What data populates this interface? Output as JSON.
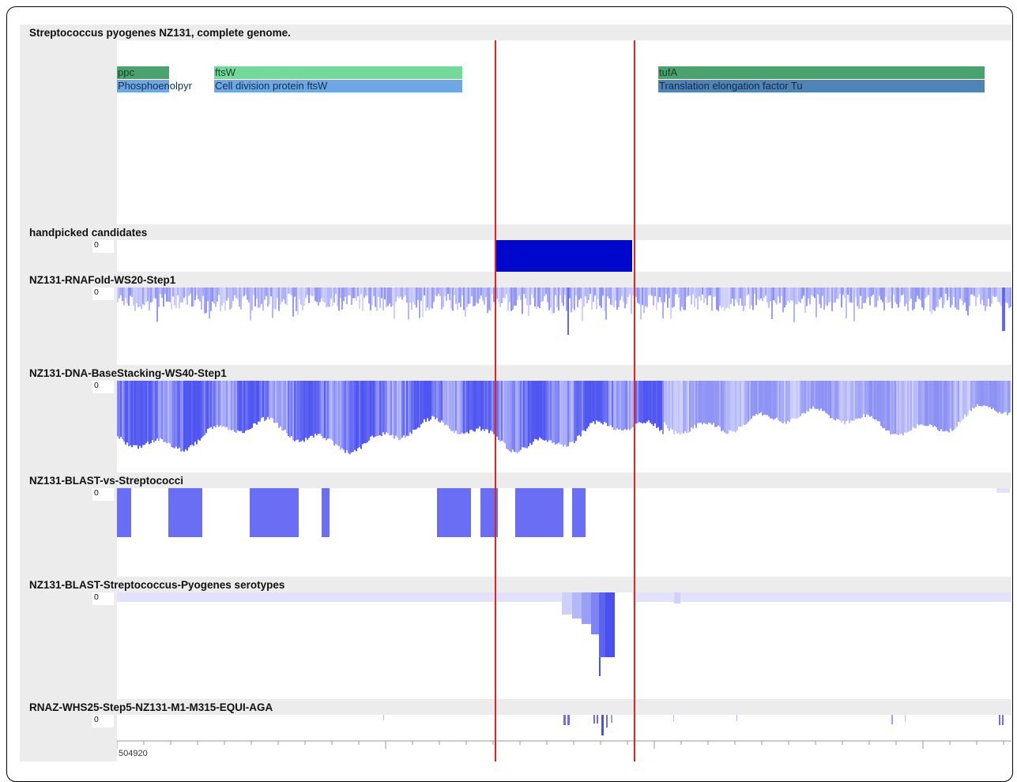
{
  "genome_title": "Streptococcus pyogenes NZ131, complete genome.",
  "genes": [
    {
      "label": "ppc",
      "kind": "gene",
      "color": "#4aa36f"
    },
    {
      "label": "Phosphoenolpyr",
      "kind": "product",
      "color": "#6da7e6"
    },
    {
      "label": "ftsW",
      "kind": "gene",
      "color": "#72d99a"
    },
    {
      "label": "Cell division protein ftsW",
      "kind": "product",
      "color": "#6da7e6"
    },
    {
      "label": "tufA",
      "kind": "gene",
      "color": "#4aa36f"
    },
    {
      "label": "Translation elongation factor Tu",
      "kind": "product",
      "color": "#4f84b9"
    }
  ],
  "tracks": [
    {
      "title": "handpicked candidates",
      "zero": "0",
      "color": "#0007cc"
    },
    {
      "title": "NZ131-RNAFold-WS20-Step1",
      "zero": "0",
      "color": "#8f95ef"
    },
    {
      "title": "NZ131-DNA-BaseStacking-WS40-Step1",
      "zero": "0",
      "color": "#4d55f0"
    },
    {
      "title": "NZ131-BLAST-vs-Streptococci",
      "zero": "0",
      "color": "#6a6ef4"
    },
    {
      "title": "NZ131-BLAST-Streptococcus-Pyogenes serotypes",
      "zero": "0",
      "color": "#6366f0"
    },
    {
      "title": "RNAZ-WHS25-Step5-NZ131-M1-M315-EQUI-AGA",
      "zero": "0",
      "color": "#6a6ef4"
    }
  ],
  "ruler": {
    "start_label": "504920"
  },
  "selection_color": "#e4221c"
}
